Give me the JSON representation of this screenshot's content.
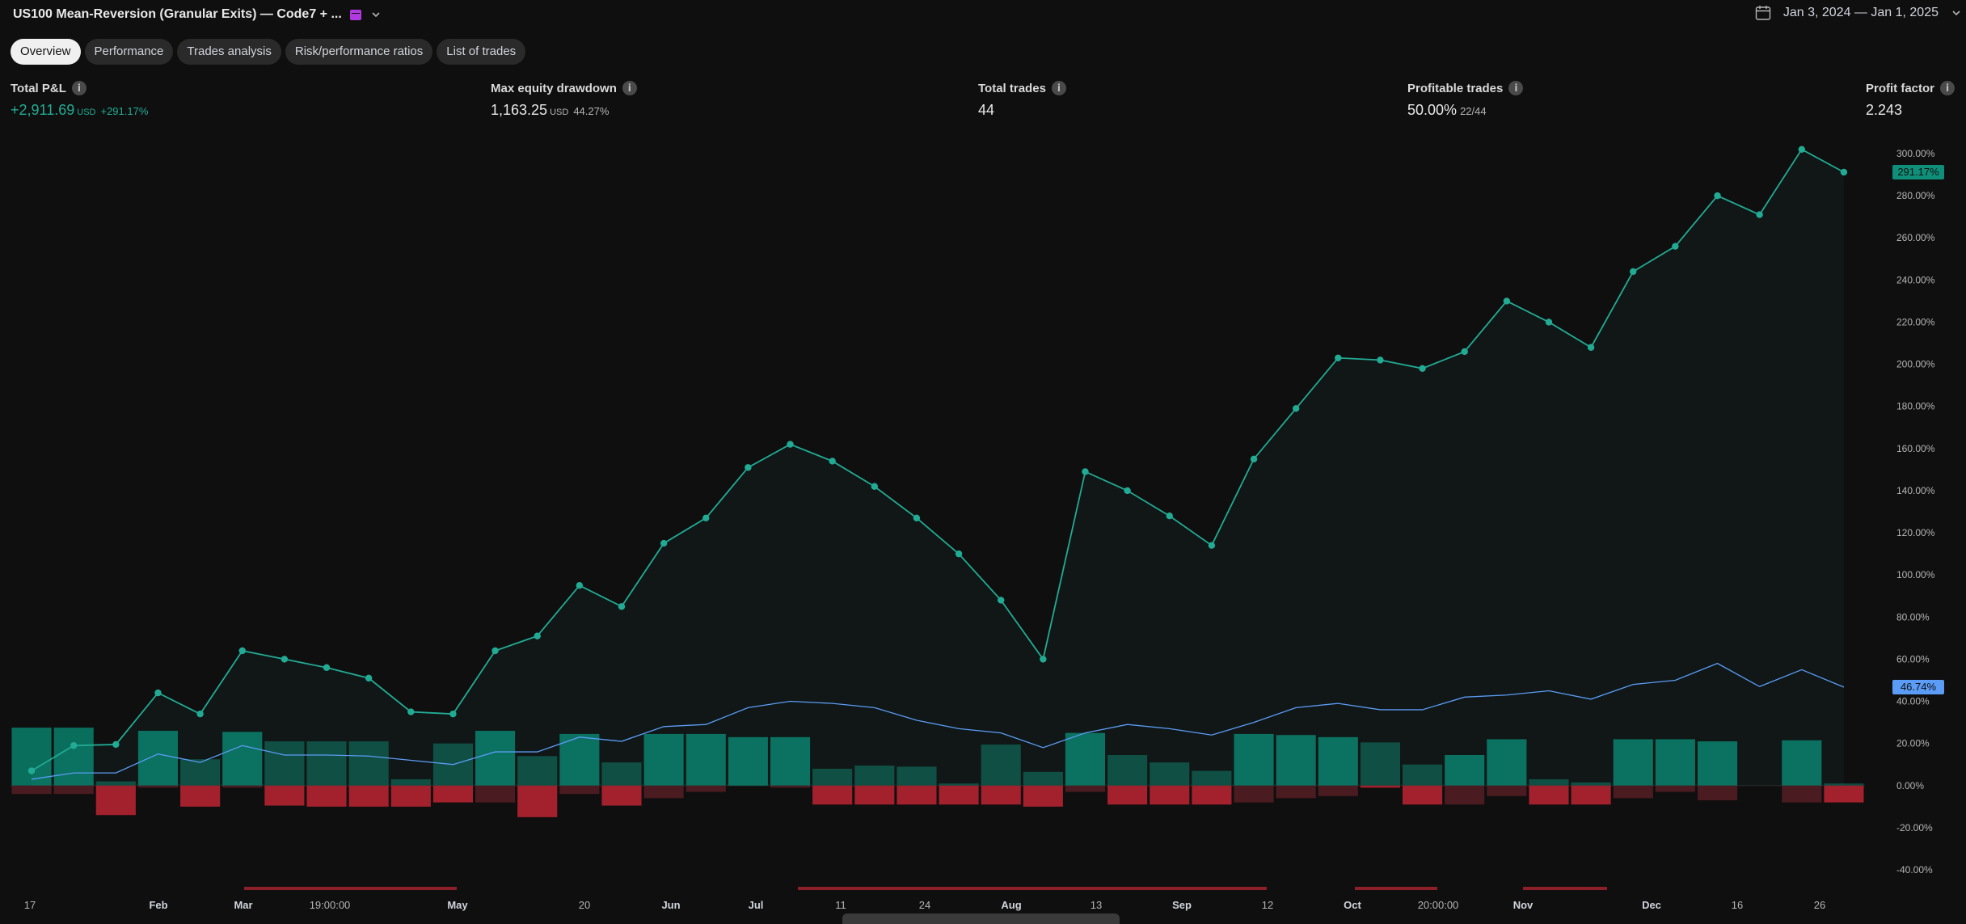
{
  "header": {
    "title": "US100 Mean-Reversion (Granular Exits) — Code7 + ...",
    "date_range": "Jan 3, 2024 — Jan 1, 2025",
    "badge_color": "#b03ae0"
  },
  "tabs": [
    {
      "label": "Overview",
      "active": true
    },
    {
      "label": "Performance",
      "active": false
    },
    {
      "label": "Trades analysis",
      "active": false
    },
    {
      "label": "Risk/performance ratios",
      "active": false
    },
    {
      "label": "List of trades",
      "active": false
    }
  ],
  "metrics": {
    "total_pnl": {
      "label": "Total P&L",
      "value": "+2,911.69",
      "unit": "USD",
      "sub": "+291.17%"
    },
    "max_dd": {
      "label": "Max equity drawdown",
      "value": "1,163.25",
      "unit": "USD",
      "sub": "44.27%"
    },
    "total_trades": {
      "label": "Total trades",
      "value": "44"
    },
    "profitable": {
      "label": "Profitable trades",
      "value": "50.00%",
      "sub": "22/44"
    },
    "profit_factor": {
      "label": "Profit factor",
      "value": "2.243"
    }
  },
  "icons": {
    "info": "info-icon",
    "calendar": "calendar-icon",
    "chevron": "chevron-down-icon"
  },
  "colors": {
    "equity": "#22ab94",
    "buy_hold": "#5b9cf6",
    "profit_bar": "#0a6e5d",
    "profit_bar_dim": "#0f4a40",
    "loss_bar": "#a3202d",
    "loss_bar_dim": "#4a1b20",
    "accent_green": "#22ab94"
  },
  "chart_data": {
    "type": "line",
    "y_unit": "%",
    "ylim": [
      -40,
      300
    ],
    "y_ticks": [
      "300.00%",
      "280.00%",
      "260.00%",
      "240.00%",
      "220.00%",
      "200.00%",
      "180.00%",
      "160.00%",
      "140.00%",
      "120.00%",
      "100.00%",
      "80.00%",
      "60.00%",
      "40.00%",
      "20.00%",
      "0.00%",
      "-20.00%",
      "-40.00%"
    ],
    "x_labels": [
      "17",
      "Feb",
      "Mar",
      "19:00:00",
      "May",
      "20",
      "Jun",
      "Jul",
      "11",
      "24",
      "Aug",
      "13",
      "Sep",
      "12",
      "Oct",
      "20:00:00",
      "Nov",
      "Dec",
      "16",
      "26"
    ],
    "trade_numbers": [
      1,
      2,
      3,
      4,
      5,
      6,
      7,
      8,
      9,
      10,
      11,
      12,
      13,
      14,
      15,
      16,
      17,
      18,
      19,
      20,
      21,
      22,
      23,
      24,
      25,
      26,
      27,
      28,
      29,
      30,
      31,
      32,
      33,
      34,
      35,
      36,
      37,
      38,
      39,
      40,
      41,
      42,
      43,
      44
    ],
    "series": [
      {
        "name": "",
        "kind": "equity",
        "last_label": "291.17%",
        "values": [
          7,
          19,
          19.5,
          44,
          34,
          64,
          60,
          56,
          51,
          35,
          34,
          64,
          71,
          95,
          85,
          115,
          127,
          151,
          162,
          154,
          142,
          127,
          110,
          88,
          60,
          149,
          140,
          128,
          114,
          155,
          179,
          203,
          202,
          198,
          206,
          230,
          220,
          208,
          244,
          256,
          280,
          271,
          302,
          291.17
        ]
      },
      {
        "name": "",
        "kind": "buy_and_hold",
        "last_label": "46.74%",
        "values": [
          3,
          6,
          6,
          15,
          11,
          19,
          14.5,
          14.5,
          14,
          12,
          10,
          16,
          16,
          23,
          21,
          28,
          29,
          37,
          40,
          39,
          37,
          31,
          27,
          25,
          18,
          25,
          29,
          27,
          24,
          30,
          37,
          39,
          36,
          36,
          42,
          43,
          45,
          41,
          48,
          50,
          58,
          47,
          55,
          46.74
        ]
      }
    ],
    "bars_runup": [
      27.5,
      27.5,
      2,
      26,
      12.5,
      25.5,
      21,
      21,
      21,
      3,
      20,
      26,
      14,
      24.5,
      11,
      24.5,
      24.5,
      23,
      23,
      8,
      9.5,
      9,
      1,
      19.5,
      6.5,
      25,
      14.5,
      11,
      7,
      24.5,
      24,
      23,
      20.5,
      10,
      14.5,
      22,
      3,
      1.5,
      22,
      22,
      21,
      0,
      21.5,
      1
    ],
    "bars_drawdown": [
      -4,
      -4,
      -14,
      -1,
      -10,
      -1,
      -9.5,
      -10,
      -10,
      -10,
      -8,
      -8,
      -15,
      -4,
      -9.5,
      -6,
      -3,
      0,
      -1,
      -9,
      -9,
      -9,
      -9,
      -9,
      -10,
      -3,
      -9,
      -9,
      -9,
      -8,
      -6,
      -5,
      -1,
      -9,
      -9,
      -5,
      -9,
      -9,
      -6,
      -3,
      -7,
      0,
      -8,
      -8
    ],
    "profitable_trade": [
      true,
      true,
      false,
      true,
      false,
      true,
      false,
      false,
      false,
      false,
      false,
      true,
      false,
      true,
      false,
      true,
      true,
      true,
      true,
      false,
      false,
      false,
      false,
      false,
      false,
      true,
      false,
      false,
      false,
      true,
      true,
      true,
      false,
      false,
      true,
      true,
      false,
      false,
      true,
      true,
      true,
      false,
      true,
      false
    ],
    "grid": false,
    "legend": "none"
  }
}
